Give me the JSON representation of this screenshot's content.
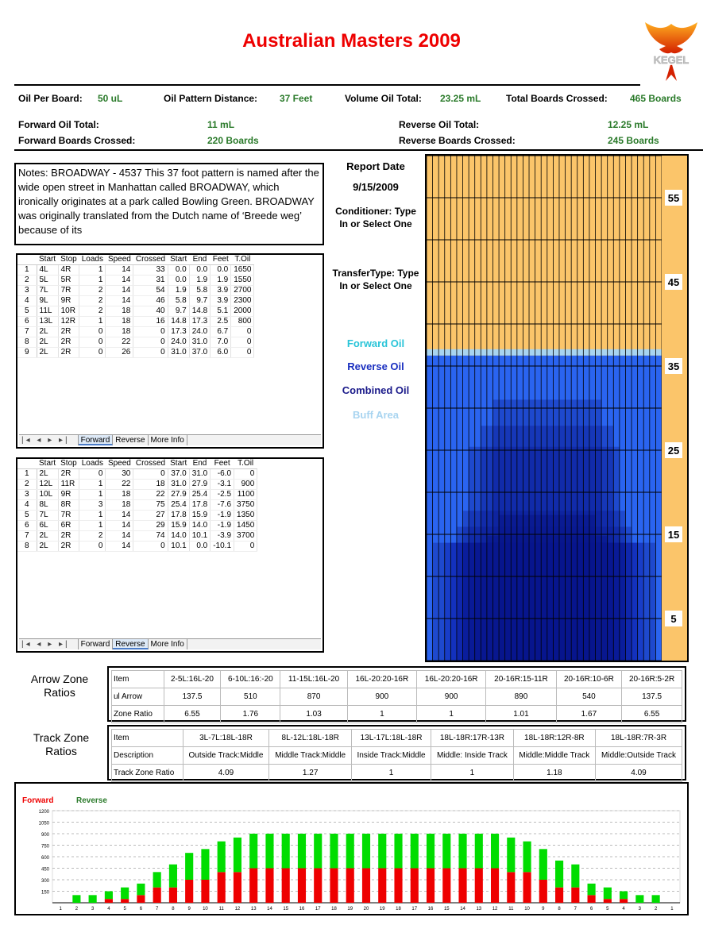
{
  "title": "Australian Masters 2009",
  "logo_text": "KEGEL",
  "summary": {
    "oil_per_board_label": "Oil Per Board:",
    "oil_per_board": "50 uL",
    "distance_label": "Oil Pattern Distance:",
    "distance": "37 Feet",
    "volume_label": "Volume Oil Total:",
    "volume": "23.25 mL",
    "boards_label": "Total Boards Crossed:",
    "boards": "465 Boards",
    "fwd_oil_label": "Forward Oil Total:",
    "fwd_oil": "11 mL",
    "rev_oil_label": "Reverse Oil Total:",
    "rev_oil": "12.25 mL",
    "fwd_boards_label": "Forward Boards Crossed:",
    "fwd_boards": "220 Boards",
    "rev_boards_label": "Reverse Boards Crossed:",
    "rev_boards": "245 Boards"
  },
  "notes": "Notes: BROADWAY - 4537    This 37 foot pattern is named after the wide open street in Manhattan called BROADWAY, which ironically originates at a park called Bowling Green. BROADWAY was originally translated from the Dutch name of ‘Breede weg’ because of its",
  "report": {
    "date_label": "Report Date",
    "date": "9/15/2009",
    "conditioner": "Conditioner: Type In or Select One",
    "transfer": "TransferType: Type In or Select One"
  },
  "legend": {
    "forward": "Forward Oil",
    "reverse": "Reverse Oil",
    "combined": "Combined Oil",
    "buff": "Buff Area",
    "colors": {
      "forward": "#29c4d8",
      "reverse": "#1a2fc0",
      "combined": "#1a1a8a",
      "buff": "#a8d4f0"
    }
  },
  "columns": [
    "",
    "Start",
    "Stop",
    "Loads",
    "Speed",
    "Crossed",
    "Start",
    "End",
    "Feet",
    "T.Oil"
  ],
  "forward_table": [
    [
      "1",
      "4L",
      "4R",
      "1",
      "14",
      "33",
      "0.0",
      "0.0",
      "0.0",
      "1650"
    ],
    [
      "2",
      "5L",
      "5R",
      "1",
      "14",
      "31",
      "0.0",
      "1.9",
      "1.9",
      "1550"
    ],
    [
      "3",
      "7L",
      "7R",
      "2",
      "14",
      "54",
      "1.9",
      "5.8",
      "3.9",
      "2700"
    ],
    [
      "4",
      "9L",
      "9R",
      "2",
      "14",
      "46",
      "5.8",
      "9.7",
      "3.9",
      "2300"
    ],
    [
      "5",
      "11L",
      "10R",
      "2",
      "18",
      "40",
      "9.7",
      "14.8",
      "5.1",
      "2000"
    ],
    [
      "6",
      "13L",
      "12R",
      "1",
      "18",
      "16",
      "14.8",
      "17.3",
      "2.5",
      "800"
    ],
    [
      "7",
      "2L",
      "2R",
      "0",
      "18",
      "0",
      "17.3",
      "24.0",
      "6.7",
      "0"
    ],
    [
      "8",
      "2L",
      "2R",
      "0",
      "22",
      "0",
      "24.0",
      "31.0",
      "7.0",
      "0"
    ],
    [
      "9",
      "2L",
      "2R",
      "0",
      "26",
      "0",
      "31.0",
      "37.0",
      "6.0",
      "0"
    ]
  ],
  "reverse_table": [
    [
      "1",
      "2L",
      "2R",
      "0",
      "30",
      "0",
      "37.0",
      "31.0",
      "-6.0",
      "0"
    ],
    [
      "2",
      "12L",
      "11R",
      "1",
      "22",
      "18",
      "31.0",
      "27.9",
      "-3.1",
      "900"
    ],
    [
      "3",
      "10L",
      "9R",
      "1",
      "18",
      "22",
      "27.9",
      "25.4",
      "-2.5",
      "1100"
    ],
    [
      "4",
      "8L",
      "8R",
      "3",
      "18",
      "75",
      "25.4",
      "17.8",
      "-7.6",
      "3750"
    ],
    [
      "5",
      "7L",
      "7R",
      "1",
      "14",
      "27",
      "17.8",
      "15.9",
      "-1.9",
      "1350"
    ],
    [
      "6",
      "6L",
      "6R",
      "1",
      "14",
      "29",
      "15.9",
      "14.0",
      "-1.9",
      "1450"
    ],
    [
      "7",
      "2L",
      "2R",
      "2",
      "14",
      "74",
      "14.0",
      "10.1",
      "-3.9",
      "3700"
    ],
    [
      "8",
      "2L",
      "2R",
      "0",
      "14",
      "0",
      "10.1",
      "0.0",
      "-10.1",
      "0"
    ]
  ],
  "tabs": {
    "nav": "|◂ ◂ ▸ ▸|",
    "forward": "Forward",
    "reverse": "Reverse",
    "more": "More Info"
  },
  "arrow_zone": {
    "label": "Arrow Zone Ratios",
    "header": [
      "Item",
      "2-5L:16L-20",
      "6-10L:16:-20",
      "11-15L:16L-20",
      "16L-20:20-16R",
      "16L-20:20-16R",
      "20-16R:15-11R",
      "20-16R:10-6R",
      "20-16R:5-2R"
    ],
    "rows": [
      [
        "ul Arrow",
        "137.5",
        "510",
        "870",
        "900",
        "900",
        "890",
        "540",
        "137.5"
      ],
      [
        "Zone Ratio",
        "6.55",
        "1.76",
        "1.03",
        "1",
        "1",
        "1.01",
        "1.67",
        "6.55"
      ]
    ]
  },
  "track_zone": {
    "label": "Track Zone Ratios",
    "header": [
      "Item",
      "3L-7L:18L-18R",
      "8L-12L:18L-18R",
      "13L-17L:18L-18R",
      "18L-18R:17R-13R",
      "18L-18R:12R-8R",
      "18L-18R:7R-3R"
    ],
    "rows": [
      [
        "Description",
        "Outside Track:Middle",
        "Middle Track:Middle",
        "Inside Track:Middle",
        "Middle: Inside Track",
        "Middle:Middle Track",
        "Middle:Outside Track"
      ],
      [
        "Track Zone Ratio",
        "4.09",
        "1.27",
        "1",
        "1",
        "1.18",
        "4.09"
      ]
    ]
  },
  "chart_data": [
    {
      "type": "heatmap",
      "y_ticks": [
        55,
        45,
        35,
        25,
        15,
        5
      ],
      "ylim": [
        0,
        60
      ],
      "boards": 39,
      "pattern_feet": 37,
      "regions": [
        {
          "layer": "reverse",
          "from_board": 2,
          "to_board": 38,
          "to_ft": 37.0
        },
        {
          "layer": "reverse",
          "from_board": 2,
          "to_board": 38,
          "to_ft": 14.0
        },
        {
          "layer": "combined",
          "from_board": 4,
          "to_board": 36,
          "to_ft": 0.0
        }
      ]
    },
    {
      "type": "bar",
      "stacked": true,
      "series_names": [
        "Forward",
        "Reverse"
      ],
      "colors": [
        "#ee0000",
        "#00dd00"
      ],
      "ylim": [
        0,
        1200
      ],
      "y_ticks": [
        150,
        300,
        450,
        600,
        750,
        900,
        1050,
        1200
      ],
      "categories": [
        "1",
        "2",
        "3",
        "4",
        "5",
        "6",
        "7",
        "8",
        "9",
        "10",
        "11",
        "12",
        "13",
        "14",
        "15",
        "16",
        "17",
        "18",
        "19",
        "20",
        "19",
        "18",
        "17",
        "16",
        "15",
        "14",
        "13",
        "12",
        "11",
        "10",
        "9",
        "8",
        "7",
        "6",
        "5",
        "4",
        "3",
        "2",
        "1"
      ],
      "series": [
        {
          "name": "Forward",
          "values": [
            0,
            0,
            0,
            50,
            50,
            100,
            200,
            200,
            300,
            300,
            400,
            400,
            450,
            450,
            450,
            450,
            450,
            450,
            450,
            450,
            450,
            450,
            450,
            450,
            450,
            450,
            450,
            450,
            400,
            400,
            300,
            200,
            200,
            100,
            50,
            50,
            0,
            0,
            0
          ]
        },
        {
          "name": "Reverse",
          "values": [
            0,
            100,
            100,
            100,
            150,
            150,
            200,
            300,
            350,
            400,
            400,
            450,
            450,
            450,
            450,
            450,
            450,
            450,
            450,
            450,
            450,
            450,
            450,
            450,
            450,
            450,
            450,
            450,
            450,
            400,
            400,
            350,
            300,
            150,
            150,
            100,
            100,
            100,
            0
          ]
        }
      ]
    }
  ]
}
